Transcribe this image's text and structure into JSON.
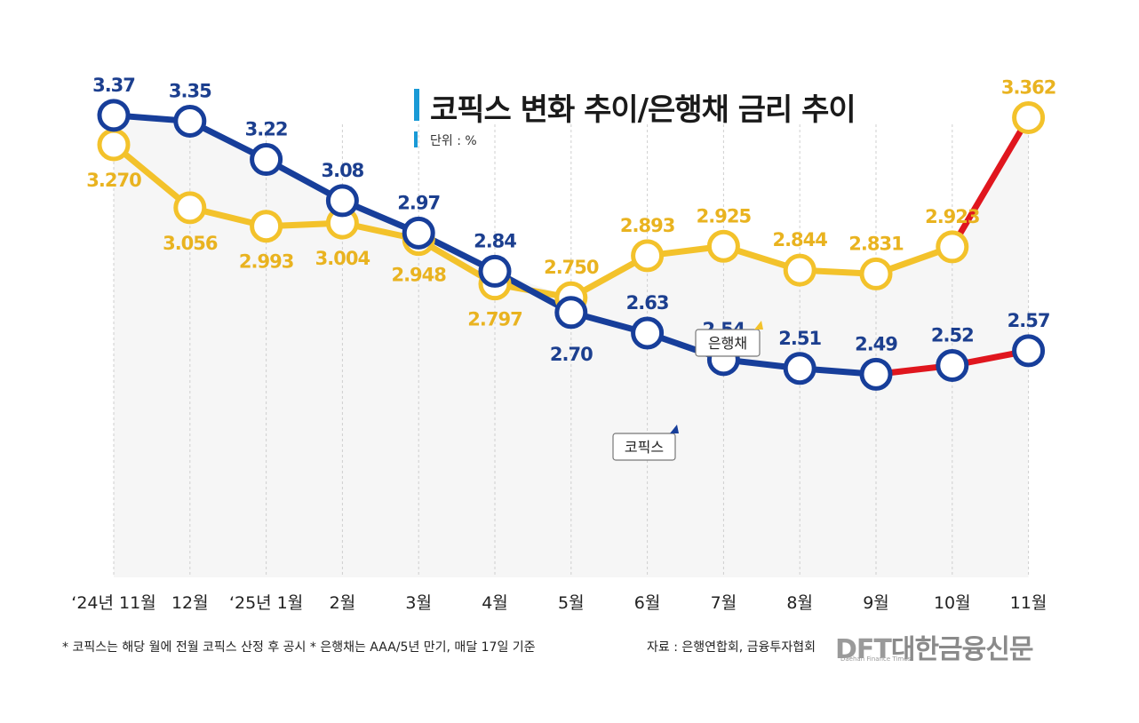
{
  "header": {
    "title": "코픽스 변화 추이/은행채 금리 추이",
    "unit": "단위 : %"
  },
  "footer": {
    "note": "* 코픽스는 해당 월에 전월 코픽스 산정 후 공시  * 은행채는 AAA/5년 만기, 매달 17일 기준",
    "source": "자료 : 은행연합회, 금융투자협회",
    "logo": "DFT대한금융신문",
    "logo_sub": "Daehan Finance Times"
  },
  "colors": {
    "kofix": "#173e9a",
    "bank_bond": "#f3c22b",
    "highlight": "#e0161e",
    "kofix_label": "#1c3f8f",
    "bond_label": "#e9b320",
    "grid": "#cfcfcf",
    "area": "#f6f6f6"
  },
  "chart_data": {
    "type": "line",
    "categories": [
      "‘24년 11월",
      "12월",
      "‘25년 1월",
      "2월",
      "3월",
      "4월",
      "5월",
      "6월",
      "7월",
      "8월",
      "9월",
      "10월",
      "11월"
    ],
    "series": [
      {
        "name": "코픽스",
        "values": [
          3.37,
          3.35,
          3.22,
          3.08,
          2.97,
          2.84,
          2.7,
          2.63,
          2.54,
          2.51,
          2.49,
          2.52,
          2.57
        ],
        "labels": [
          "3.37",
          "3.35",
          "3.22",
          "3.08",
          "2.97",
          "2.84",
          "2.70",
          "2.63",
          "2.54",
          "2.51",
          "2.49",
          "2.52",
          "2.57"
        ],
        "highlight_from_index": 10
      },
      {
        "name": "은행채",
        "values": [
          3.27,
          3.056,
          2.993,
          3.004,
          2.948,
          2.797,
          2.75,
          2.893,
          2.925,
          2.844,
          2.831,
          2.923,
          3.362
        ],
        "labels": [
          "3.270",
          "3.056",
          "2.993",
          "3.004",
          "2.948",
          "2.797",
          "2.750",
          "2.893",
          "2.925",
          "2.844",
          "2.831",
          "2.923",
          "3.362"
        ],
        "highlight_from_index": 11
      }
    ],
    "ylim": [
      1.8,
      3.46
    ],
    "grid": "vertical-dashed",
    "legend": "inline callouts"
  }
}
